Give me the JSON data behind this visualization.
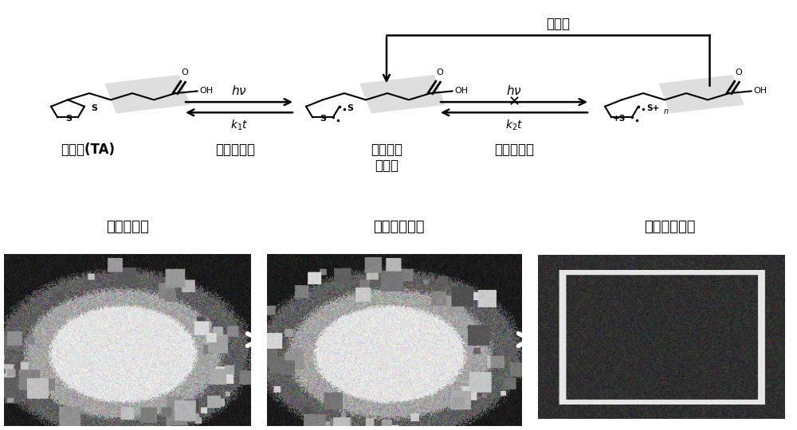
{
  "bg_color": "#ffffff",
  "label_sulfuric_acid": "硫辛酸(TA)",
  "label_intramolecular": "分子内环化",
  "label_biradical": "双自由基\n中间体",
  "label_intermolecular": "分子间聚合",
  "label_thermal": "热活化",
  "label_monomer": "硫辛酸单体",
  "label_thermal_polymer": "超分子热聚物",
  "label_photo_polymer": "超分子光聚物"
}
